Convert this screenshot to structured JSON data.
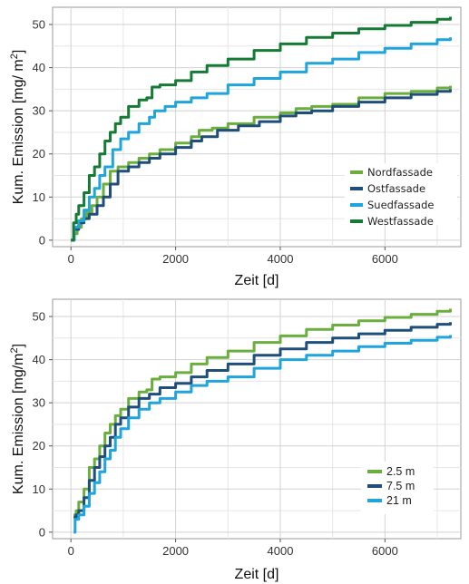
{
  "chart_data": [
    {
      "type": "line",
      "title": "",
      "xlabel": "Zeit [d]",
      "ylabel": "Kum. Emission [mg/ m",
      "ylabel_sup": "2",
      "ylabel_end": "]",
      "xlim": [
        -350,
        7450
      ],
      "ylim": [
        -1.5,
        54
      ],
      "xticks": [
        0,
        2000,
        4000,
        6000
      ],
      "yticks": [
        0,
        10,
        20,
        30,
        40,
        50
      ],
      "grid": true,
      "legend_position": "right-center",
      "series": [
        {
          "name": "Nordfassade",
          "color": "#6aaf3e",
          "x": [
            0,
            60,
            120,
            200,
            300,
            400,
            500,
            620,
            750,
            900,
            1100,
            1300,
            1500,
            1700,
            2000,
            2300,
            2450,
            2700,
            3000,
            3500,
            4000,
            4300,
            4600,
            5000,
            5500,
            6000,
            6500,
            7000,
            7250
          ],
          "y": [
            0,
            1.5,
            3,
            5,
            6.5,
            8,
            10,
            13,
            16,
            17,
            18,
            19,
            20,
            21,
            22.5,
            24,
            25.5,
            26,
            27,
            28.5,
            29.5,
            30.5,
            31,
            31.5,
            33,
            34,
            34.5,
            35.3,
            35.8
          ]
        },
        {
          "name": "Ostfassade",
          "color": "#1f4e79",
          "x": [
            0,
            60,
            150,
            250,
            350,
            500,
            620,
            750,
            900,
            1100,
            1300,
            1500,
            1700,
            2000,
            2300,
            2500,
            2800,
            3200,
            3600,
            4000,
            4300,
            4600,
            5000,
            5500,
            6000,
            6500,
            7000,
            7250
          ],
          "y": [
            0,
            2.5,
            4,
            5,
            6,
            8,
            10,
            13,
            16,
            17,
            18,
            19,
            20,
            21.5,
            23,
            24,
            25.5,
            26.5,
            27.5,
            28.8,
            29.5,
            30,
            31,
            32,
            33,
            33.8,
            34.5,
            35
          ]
        },
        {
          "name": "Suedfassade",
          "color": "#1fa4dc",
          "x": [
            0,
            60,
            150,
            250,
            350,
            450,
            550,
            650,
            800,
            950,
            1100,
            1300,
            1500,
            1600,
            1800,
            2000,
            2300,
            2600,
            3000,
            3500,
            4000,
            4500,
            5000,
            5500,
            6000,
            6500,
            7000,
            7250
          ],
          "y": [
            0,
            3,
            4.5,
            7,
            10,
            12,
            15,
            17,
            21,
            23.5,
            25,
            27,
            28.5,
            30,
            31,
            32,
            33,
            34,
            36,
            37.5,
            39,
            41,
            42,
            43.5,
            44.5,
            45.5,
            46.5,
            47
          ]
        },
        {
          "name": "Westfassade",
          "color": "#157a34",
          "x": [
            0,
            50,
            100,
            150,
            250,
            350,
            450,
            550,
            650,
            750,
            850,
            950,
            1100,
            1300,
            1450,
            1550,
            1700,
            2000,
            2300,
            2600,
            3000,
            3500,
            4000,
            4500,
            5000,
            5500,
            6000,
            6500,
            7000,
            7250
          ],
          "y": [
            0,
            4,
            6,
            8,
            11,
            15,
            17,
            20,
            23,
            25,
            27,
            28.5,
            31,
            32.5,
            33,
            35.5,
            36,
            37,
            39,
            40.5,
            42,
            44,
            45.5,
            47,
            48,
            49,
            49.8,
            50.5,
            51.2,
            51.8
          ]
        }
      ]
    },
    {
      "type": "line",
      "title": "",
      "xlabel": "Zeit [d]",
      "ylabel": "Kum. Emission [mg/m",
      "ylabel_sup": "2",
      "ylabel_end": "]",
      "xlim": [
        -350,
        7450
      ],
      "ylim": [
        -1.5,
        54
      ],
      "xticks": [
        0,
        2000,
        4000,
        6000
      ],
      "yticks": [
        0,
        10,
        20,
        30,
        40,
        50
      ],
      "grid": true,
      "legend_position": "right-lower",
      "series": [
        {
          "name": "2.5 m",
          "color": "#6aaf3e",
          "x": [
            50,
            100,
            150,
            250,
            350,
            450,
            550,
            650,
            750,
            850,
            950,
            1100,
            1300,
            1450,
            1550,
            1700,
            2000,
            2300,
            2600,
            3000,
            3500,
            4000,
            4500,
            5000,
            5500,
            6000,
            6500,
            7000,
            7250
          ],
          "y": [
            4,
            5,
            7,
            10,
            15,
            17,
            20,
            23,
            25,
            27,
            28.5,
            31,
            32.5,
            33,
            35.5,
            36,
            37,
            39,
            40.5,
            42,
            44,
            45.5,
            47,
            48,
            49,
            49.8,
            50.5,
            51.2,
            51.8
          ]
        },
        {
          "name": "7.5 m",
          "color": "#1f4e79",
          "x": [
            50,
            100,
            150,
            250,
            350,
            450,
            550,
            650,
            750,
            850,
            950,
            1100,
            1300,
            1500,
            1700,
            2000,
            2300,
            2600,
            3000,
            3500,
            4000,
            4500,
            5000,
            5500,
            6000,
            6500,
            7000,
            7250
          ],
          "y": [
            3.5,
            4,
            5,
            8,
            12,
            15,
            17.5,
            20,
            22,
            25,
            26.5,
            29,
            31,
            32,
            33.5,
            34.5,
            36,
            37.5,
            39,
            41,
            42.5,
            44,
            45,
            46,
            46.8,
            47.5,
            48.2,
            48.7
          ]
        },
        {
          "name": "21 m",
          "color": "#1fa4dc",
          "x": [
            50,
            80,
            150,
            250,
            350,
            450,
            550,
            650,
            750,
            850,
            950,
            1100,
            1300,
            1500,
            1700,
            2000,
            2300,
            2600,
            3000,
            3500,
            4000,
            4500,
            5000,
            5500,
            6000,
            6500,
            7000,
            7250
          ],
          "y": [
            0,
            3,
            4,
            6,
            9,
            11.5,
            14,
            17,
            19,
            22,
            24,
            26.5,
            28.5,
            30,
            31,
            32.5,
            34,
            35,
            36,
            38,
            40,
            41,
            42,
            43,
            43.8,
            44.5,
            45.2,
            45.7
          ]
        }
      ]
    }
  ]
}
